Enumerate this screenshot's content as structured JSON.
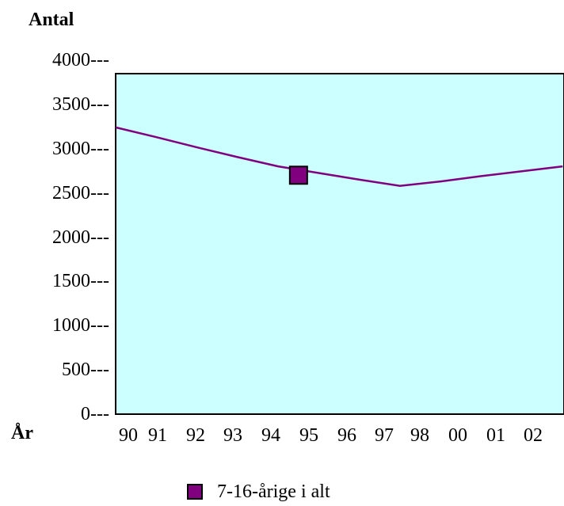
{
  "chart_data": {
    "type": "line",
    "ylabel": "Antal",
    "xlabel": "År",
    "ylim": [
      0,
      4000
    ],
    "y_ticks": [
      "4000---",
      "3500---",
      "3000---",
      "2500---",
      "2000---",
      "1500---",
      "1000---",
      "500---",
      "0---"
    ],
    "y_tick_values": [
      4000,
      3500,
      3000,
      2500,
      2000,
      1500,
      1000,
      500,
      0
    ],
    "categories": [
      "90",
      "91",
      "92",
      "93",
      "94",
      "95",
      "96",
      "97",
      "98",
      "00",
      "01",
      "02"
    ],
    "series": [
      {
        "name": "7-16-årige i alt",
        "color": "#800080",
        "values": [
          3240,
          3130,
          3015,
          2905,
          2800,
          2725,
          2650,
          2580,
          2630,
          2690,
          2745,
          2800
        ],
        "marker_index": 4.5,
        "marker_value": 2700
      }
    ],
    "plot_background": "#ccffff",
    "grid": false,
    "legend_position": "bottom-center"
  }
}
